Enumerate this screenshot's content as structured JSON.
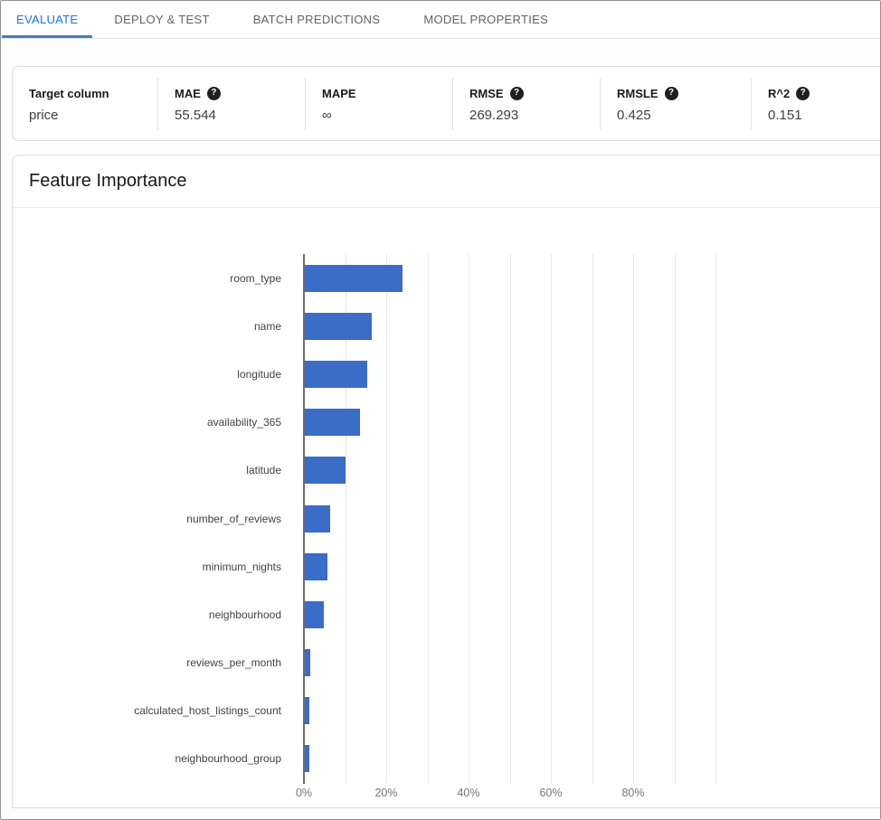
{
  "tabs": [
    {
      "label": "EVALUATE",
      "active": true
    },
    {
      "label": "DEPLOY & TEST",
      "active": false
    },
    {
      "label": "BATCH PREDICTIONS",
      "active": false
    },
    {
      "label": "MODEL PROPERTIES",
      "active": false
    }
  ],
  "metrics": {
    "columns": [
      {
        "label": "Target column",
        "value": "price",
        "help": false
      },
      {
        "label": "MAE",
        "value": "55.544",
        "help": true
      },
      {
        "label": "MAPE",
        "value": "∞",
        "help": false
      },
      {
        "label": "RMSE",
        "value": "269.293",
        "help": true
      },
      {
        "label": "RMSLE",
        "value": "0.425",
        "help": true
      },
      {
        "label": "R^2",
        "value": "0.151",
        "help": true
      }
    ],
    "help_glyph": "?"
  },
  "section": {
    "title": "Feature Importance"
  },
  "chart_data": {
    "type": "bar",
    "orientation": "horizontal",
    "title": "Feature Importance",
    "categories": [
      "room_type",
      "name",
      "longitude",
      "availability_365",
      "latitude",
      "number_of_reviews",
      "minimum_nights",
      "neighbourhood",
      "reviews_per_month",
      "calculated_host_listings_count",
      "neighbourhood_group"
    ],
    "values": [
      23.8,
      16.3,
      15.2,
      13.4,
      9.9,
      6.2,
      5.5,
      4.6,
      1.3,
      1.2,
      1.0
    ],
    "value_unit": "percent",
    "xlabel": "",
    "ylabel": "",
    "xlim": [
      0,
      100
    ],
    "x_tick_labels": [
      "0%",
      "20%",
      "40%",
      "60%",
      "80%"
    ],
    "x_tick_step_percent": 20,
    "gridline_step_percent": 10,
    "grid": true,
    "legend": "none",
    "bar_color": "#3b6cc7"
  }
}
